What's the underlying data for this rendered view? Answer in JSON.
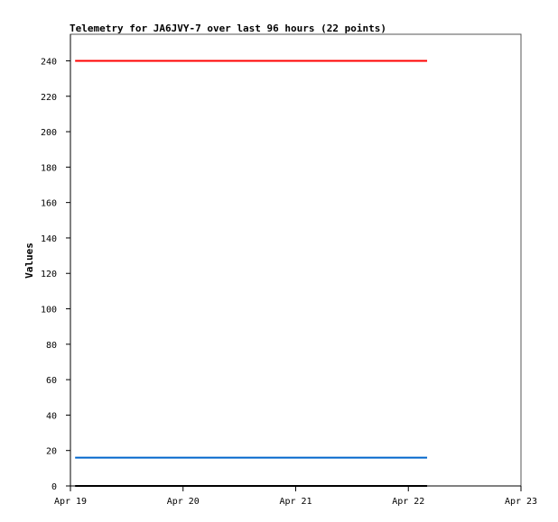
{
  "chart_data": {
    "type": "line",
    "title": "Telemetry for JA6JVY-7 over last 96 hours (22 points)",
    "xlabel": "",
    "ylabel": "Values",
    "x_ticks": [
      "Apr 19",
      "Apr 20",
      "Apr 21",
      "Apr 22",
      "Apr 23"
    ],
    "y_ticks": [
      0,
      20,
      40,
      60,
      80,
      100,
      120,
      140,
      160,
      180,
      200,
      220,
      240
    ],
    "xlim_days": [
      0,
      4
    ],
    "ylim": [
      0,
      255
    ],
    "grid": false,
    "series": [
      {
        "color": "#ff0000",
        "x": [
          "Apr 19 01:00",
          "Apr 22 04:00"
        ],
        "values": [
          240,
          240
        ]
      },
      {
        "color": "#0066cc",
        "x": [
          "Apr 19 01:00",
          "Apr 22 04:00"
        ],
        "values": [
          16,
          16
        ]
      },
      {
        "color": "#000000",
        "x": [
          "Apr 19 01:00",
          "Apr 22 04:00"
        ],
        "values": [
          0,
          0
        ]
      }
    ]
  }
}
